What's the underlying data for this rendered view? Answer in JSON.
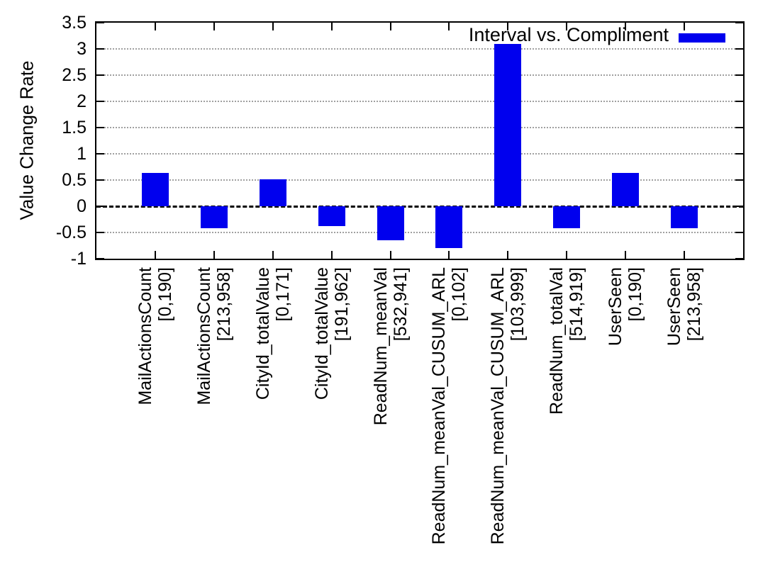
{
  "chart_data": {
    "type": "bar",
    "title": "",
    "ylabel": "Value Change Rate",
    "xlabel": "",
    "legend": {
      "label": "Interval vs. Compliment",
      "position": "top-right"
    },
    "bar_color": "#0000ee",
    "grid": true,
    "zero_line_style": "black-dashed",
    "ylim": [
      -1,
      3.5
    ],
    "ytick_labels": [
      "3.5",
      "3",
      "2.5",
      "2",
      "1.5",
      "1",
      "0.5",
      "0",
      "-0.5",
      "-1"
    ],
    "categories": [
      {
        "name": "MailActionsCount",
        "range": "[0,190]"
      },
      {
        "name": "MailActionsCount",
        "range": "[213,958]"
      },
      {
        "name": "CityId_totalValue",
        "range": "[0,171]"
      },
      {
        "name": "CityId_totalValue",
        "range": "[191,962]"
      },
      {
        "name": "ReadNum_meanVal",
        "range": "[532,941]"
      },
      {
        "name": "ReadNum_meanVal_CUSUM_ARL",
        "range": "[0,102]"
      },
      {
        "name": "ReadNum_meanVal_CUSUM_ARL",
        "range": "[103,999]"
      },
      {
        "name": "ReadNum_totalVal",
        "range": "[514,919]"
      },
      {
        "name": "UserSeen",
        "range": "[0,190]"
      },
      {
        "name": "UserSeen",
        "range": "[213,958]"
      }
    ],
    "values": [
      0.64,
      -0.42,
      0.52,
      -0.38,
      -0.65,
      -0.8,
      3.1,
      -0.42,
      0.64,
      -0.42
    ]
  }
}
